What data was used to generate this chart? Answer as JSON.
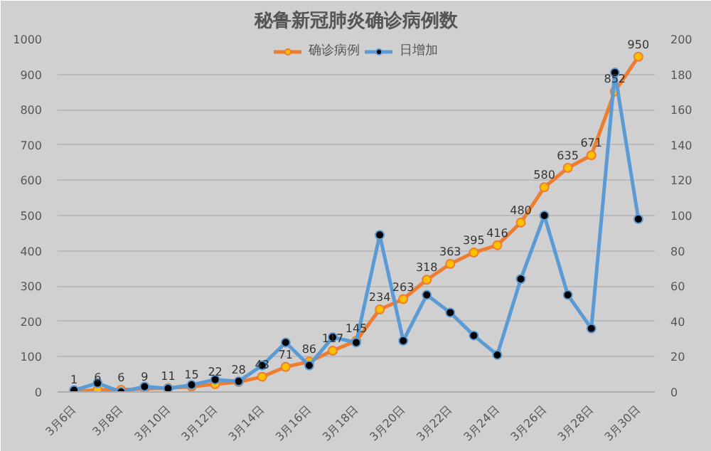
{
  "chart_data": {
    "type": "line",
    "title": "秘鲁新冠肺炎确诊病例数",
    "categories": [
      "3月6日",
      null,
      "3月8日",
      null,
      "3月10日",
      null,
      "3月12日",
      null,
      "3月14日",
      null,
      "3月16日",
      null,
      "3月18日",
      null,
      "3月20日",
      null,
      "3月22日",
      null,
      "3月24日",
      null,
      "3月26日",
      null,
      "3月28日",
      null,
      "3月30日"
    ],
    "series": [
      {
        "name": "确诊病例",
        "color": "#ed7d31",
        "values": [
          1,
          6,
          6,
          9,
          11,
          15,
          22,
          28,
          43,
          71,
          86,
          117,
          145,
          234,
          263,
          318,
          363,
          395,
          416,
          480,
          580,
          635,
          671,
          852,
          950
        ],
        "data_labels": true
      },
      {
        "name": "日增加",
        "color": "#5b9bd5",
        "axis": "y2",
        "values": [
          1,
          5,
          0,
          3,
          2,
          4,
          7,
          6,
          15,
          28,
          15,
          31,
          28,
          89,
          29,
          55,
          45,
          32,
          21,
          64,
          100,
          55,
          36,
          181,
          98
        ]
      }
    ],
    "ylim": [
      0,
      1000
    ],
    "yticks": [
      0,
      100,
      200,
      300,
      400,
      500,
      600,
      700,
      800,
      900,
      1000
    ],
    "y2lim": [
      0,
      200
    ],
    "y2ticks": [
      0,
      20,
      40,
      60,
      80,
      100,
      120,
      140,
      160,
      180,
      200
    ],
    "grid": "y",
    "legend": "top",
    "marker": "circle"
  }
}
